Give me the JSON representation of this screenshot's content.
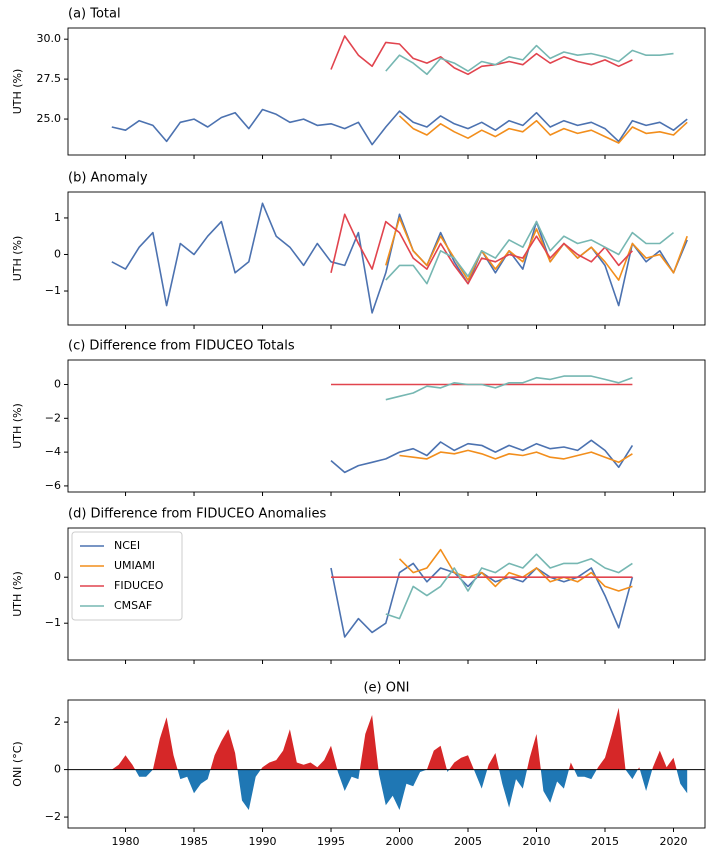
{
  "chart_data": [
    {
      "type": "line",
      "title": "(a)  Total",
      "title_loc": "left",
      "ylabel": "UTH (%)",
      "xlim": [
        1975.8,
        2022.3
      ],
      "ylim": [
        22.75,
        30.7
      ],
      "yticks": [
        {
          "value": 25,
          "label": "25.0"
        },
        27.5,
        {
          "value": 30,
          "label": "30.0"
        }
      ],
      "x": [
        1979,
        1980,
        1981,
        1982,
        1983,
        1984,
        1985,
        1986,
        1987,
        1988,
        1989,
        1990,
        1991,
        1992,
        1993,
        1994,
        1995,
        1996,
        1997,
        1998,
        1999,
        2000,
        2001,
        2002,
        2003,
        2004,
        2005,
        2006,
        2007,
        2008,
        2009,
        2010,
        2011,
        2012,
        2013,
        2014,
        2015,
        2016,
        2017,
        2018,
        2019,
        2020,
        2021
      ],
      "series": [
        {
          "name": "NCEI",
          "color": "#4c72b0",
          "values": [
            24.5,
            24.3,
            24.9,
            24.6,
            23.6,
            24.8,
            25.0,
            24.5,
            25.1,
            25.4,
            24.4,
            25.6,
            25.3,
            24.8,
            25.0,
            24.6,
            24.7,
            24.4,
            24.8,
            23.4,
            24.5,
            25.5,
            24.8,
            24.5,
            25.2,
            24.7,
            24.4,
            24.8,
            24.3,
            24.9,
            24.6,
            25.4,
            24.5,
            24.9,
            24.6,
            24.8,
            24.4,
            23.6,
            24.9,
            24.6,
            24.8,
            24.3,
            25.0
          ]
        },
        {
          "name": "UMIAMI",
          "color": "#f28e1c",
          "values": [
            null,
            null,
            null,
            null,
            null,
            null,
            null,
            null,
            null,
            null,
            null,
            null,
            null,
            null,
            null,
            null,
            null,
            null,
            null,
            null,
            null,
            25.2,
            24.4,
            24.0,
            24.7,
            24.2,
            23.8,
            24.3,
            23.9,
            24.4,
            24.2,
            24.9,
            24.0,
            24.4,
            24.1,
            24.3,
            23.9,
            23.5,
            24.5,
            24.1,
            24.2,
            24.0,
            24.8
          ]
        },
        {
          "name": "FIDUCEO",
          "color": "#e1444e",
          "values": [
            null,
            null,
            null,
            null,
            null,
            null,
            null,
            null,
            null,
            null,
            null,
            null,
            null,
            null,
            null,
            null,
            28.1,
            30.2,
            29.0,
            28.3,
            29.8,
            29.7,
            28.8,
            28.5,
            28.9,
            28.2,
            27.8,
            28.3,
            28.4,
            28.6,
            28.4,
            29.1,
            28.5,
            28.9,
            28.6,
            28.4,
            28.7,
            28.3,
            28.7,
            null,
            null,
            null,
            null
          ]
        },
        {
          "name": "CMSAF",
          "color": "#76b7b2",
          "values": [
            null,
            null,
            null,
            null,
            null,
            null,
            null,
            null,
            null,
            null,
            null,
            null,
            null,
            null,
            null,
            null,
            null,
            null,
            null,
            null,
            28.0,
            29.0,
            28.5,
            27.8,
            28.8,
            28.5,
            28.0,
            28.6,
            28.4,
            28.9,
            28.7,
            29.6,
            28.8,
            29.2,
            29.0,
            29.1,
            28.9,
            28.6,
            29.3,
            29.0,
            29.0,
            29.1,
            null
          ]
        }
      ]
    },
    {
      "type": "line",
      "title": "(b)  Anomaly",
      "title_loc": "left",
      "ylabel": "UTH (%)",
      "xlim": [
        1975.8,
        2022.3
      ],
      "ylim": [
        -1.93,
        1.71
      ],
      "yticks": [
        {
          "value": -1,
          "label": "−1"
        },
        0,
        1
      ],
      "x": [
        1979,
        1980,
        1981,
        1982,
        1983,
        1984,
        1985,
        1986,
        1987,
        1988,
        1989,
        1990,
        1991,
        1992,
        1993,
        1994,
        1995,
        1996,
        1997,
        1998,
        1999,
        2000,
        2001,
        2002,
        2003,
        2004,
        2005,
        2006,
        2007,
        2008,
        2009,
        2010,
        2011,
        2012,
        2013,
        2014,
        2015,
        2016,
        2017,
        2018,
        2019,
        2020,
        2021
      ],
      "series": [
        {
          "name": "NCEI",
          "color": "#4c72b0",
          "values": [
            -0.2,
            -0.4,
            0.2,
            0.6,
            -1.4,
            0.3,
            0.0,
            0.5,
            0.9,
            -0.5,
            -0.2,
            1.4,
            0.5,
            0.2,
            -0.3,
            0.3,
            -0.2,
            -0.3,
            0.6,
            -1.6,
            -0.5,
            1.1,
            0.1,
            -0.3,
            0.6,
            -0.2,
            -0.8,
            0.1,
            -0.5,
            0.1,
            -0.4,
            0.9,
            -0.2,
            0.3,
            -0.1,
            0.2,
            -0.3,
            -1.4,
            0.3,
            -0.2,
            0.1,
            -0.5,
            0.4
          ]
        },
        {
          "name": "UMIAMI",
          "color": "#f28e1c",
          "values": [
            null,
            null,
            null,
            null,
            null,
            null,
            null,
            null,
            null,
            null,
            null,
            null,
            null,
            null,
            null,
            null,
            null,
            null,
            null,
            null,
            -0.3,
            1.0,
            0.1,
            -0.3,
            0.5,
            -0.1,
            -0.7,
            0.1,
            -0.4,
            0.1,
            -0.2,
            0.7,
            -0.2,
            0.3,
            -0.1,
            0.2,
            -0.2,
            -0.7,
            0.3,
            -0.1,
            0.0,
            -0.5,
            0.5
          ]
        },
        {
          "name": "FIDUCEO",
          "color": "#e1444e",
          "values": [
            null,
            null,
            null,
            null,
            null,
            null,
            null,
            null,
            null,
            null,
            null,
            null,
            null,
            null,
            null,
            null,
            -0.5,
            1.1,
            0.3,
            -0.4,
            0.9,
            0.6,
            -0.1,
            -0.4,
            0.3,
            -0.3,
            -0.8,
            -0.1,
            -0.2,
            0.0,
            -0.1,
            0.5,
            -0.1,
            0.3,
            0.0,
            -0.2,
            0.2,
            -0.3,
            0.1,
            null,
            null,
            null,
            null
          ]
        },
        {
          "name": "CMSAF",
          "color": "#76b7b2",
          "values": [
            null,
            null,
            null,
            null,
            null,
            null,
            null,
            null,
            null,
            null,
            null,
            null,
            null,
            null,
            null,
            null,
            null,
            null,
            null,
            null,
            -0.7,
            -0.3,
            -0.3,
            -0.8,
            0.1,
            -0.1,
            -0.6,
            0.1,
            -0.1,
            0.4,
            0.2,
            0.9,
            0.1,
            0.5,
            0.3,
            0.4,
            0.2,
            0.0,
            0.6,
            0.3,
            0.3,
            0.6,
            null
          ]
        }
      ]
    },
    {
      "type": "line",
      "title": "(c)  Difference from FIDUCEO Totals",
      "title_loc": "left",
      "ylabel": "UTH (%)",
      "xlim": [
        1975.8,
        2022.3
      ],
      "ylim": [
        -6.36,
        1.45
      ],
      "yticks": [
        {
          "value": -6,
          "label": "−6"
        },
        {
          "value": -4,
          "label": "−4"
        },
        {
          "value": -2,
          "label": "−2"
        },
        0
      ],
      "x": [
        1995,
        1996,
        1997,
        1998,
        1999,
        2000,
        2001,
        2002,
        2003,
        2004,
        2005,
        2006,
        2007,
        2008,
        2009,
        2010,
        2011,
        2012,
        2013,
        2014,
        2015,
        2016,
        2017
      ],
      "series": [
        {
          "name": "NCEI",
          "color": "#4c72b0",
          "values": [
            -4.5,
            -5.2,
            -4.8,
            -4.6,
            -4.4,
            -4.0,
            -3.8,
            -4.2,
            -3.4,
            -3.9,
            -3.5,
            -3.6,
            -4.0,
            -3.6,
            -3.9,
            -3.5,
            -3.8,
            -3.7,
            -3.9,
            -3.3,
            -3.9,
            -4.9,
            -3.6
          ]
        },
        {
          "name": "UMIAMI",
          "color": "#f28e1c",
          "values": [
            null,
            null,
            null,
            null,
            null,
            -4.2,
            -4.3,
            -4.4,
            -4.0,
            -4.1,
            -3.9,
            -4.1,
            -4.4,
            -4.1,
            -4.2,
            -4.0,
            -4.3,
            -4.4,
            -4.2,
            -4.0,
            -4.3,
            -4.6,
            -4.1
          ]
        },
        {
          "name": "FIDUCEO",
          "color": "#e1444e",
          "values": [
            0,
            0,
            0,
            0,
            0,
            0,
            0,
            0,
            0,
            0,
            0,
            0,
            0,
            0,
            0,
            0,
            0,
            0,
            0,
            0,
            0,
            0,
            0
          ]
        },
        {
          "name": "CMSAF",
          "color": "#76b7b2",
          "values": [
            null,
            null,
            null,
            null,
            -0.9,
            -0.7,
            -0.5,
            -0.1,
            -0.2,
            0.1,
            0.0,
            0.0,
            -0.2,
            0.1,
            0.1,
            0.4,
            0.3,
            0.5,
            0.5,
            0.5,
            0.3,
            0.1,
            0.4
          ]
        }
      ]
    },
    {
      "type": "line",
      "title": "(d)  Difference from FIDUCEO Anomalies",
      "title_loc": "left",
      "ylabel": "UTH (%)",
      "xlim": [
        1975.8,
        2022.3
      ],
      "ylim": [
        -1.8,
        1.07
      ],
      "legend": "upper left",
      "yticks": [
        {
          "value": -1,
          "label": "−1"
        },
        0
      ],
      "x": [
        1995,
        1996,
        1997,
        1998,
        1999,
        2000,
        2001,
        2002,
        2003,
        2004,
        2005,
        2006,
        2007,
        2008,
        2009,
        2010,
        2011,
        2012,
        2013,
        2014,
        2015,
        2016,
        2017
      ],
      "series": [
        {
          "name": "NCEI",
          "color": "#4c72b0",
          "values": [
            0.2,
            -1.3,
            -0.9,
            -1.2,
            -1.0,
            0.1,
            0.3,
            -0.1,
            0.2,
            0.1,
            -0.2,
            0.1,
            -0.1,
            0.0,
            -0.1,
            0.2,
            0.0,
            -0.1,
            0.0,
            0.2,
            -0.4,
            -1.1,
            0.0
          ]
        },
        {
          "name": "UMIAMI",
          "color": "#f28e1c",
          "values": [
            null,
            null,
            null,
            null,
            null,
            0.4,
            0.1,
            0.2,
            0.6,
            0.1,
            0.0,
            0.1,
            -0.2,
            0.1,
            0.0,
            0.2,
            -0.1,
            0.0,
            -0.1,
            0.1,
            -0.2,
            -0.3,
            -0.2
          ]
        },
        {
          "name": "FIDUCEO",
          "color": "#e1444e",
          "values": [
            0,
            0,
            0,
            0,
            0,
            0,
            0,
            0,
            0,
            0,
            0,
            0,
            0,
            0,
            0,
            0,
            0,
            0,
            0,
            0,
            0,
            0,
            0
          ]
        },
        {
          "name": "CMSAF",
          "color": "#76b7b2",
          "values": [
            null,
            null,
            null,
            null,
            -0.8,
            -0.9,
            -0.2,
            -0.4,
            -0.2,
            0.2,
            -0.3,
            0.2,
            0.1,
            0.3,
            0.2,
            0.5,
            0.2,
            0.3,
            0.3,
            0.4,
            0.2,
            0.1,
            0.3
          ]
        }
      ]
    },
    {
      "type": "area",
      "title": "(e) ONI",
      "title_loc": "center",
      "ylabel": "ONI (°C)",
      "xlim": [
        1975.8,
        2022.3
      ],
      "ylim": [
        -2.46,
        2.93
      ],
      "yticks": [
        {
          "value": -2,
          "label": "−2"
        },
        0,
        2
      ],
      "xticks": [
        1980,
        1985,
        1990,
        1995,
        2000,
        2005,
        2010,
        2015,
        2020
      ],
      "positive_color": "#d62728",
      "negative_color": "#1f77b4",
      "x": [
        1979,
        1979.5,
        1980,
        1980.5,
        1981,
        1981.5,
        1982,
        1982.5,
        1983,
        1983.5,
        1984,
        1984.5,
        1985,
        1985.5,
        1986,
        1986.5,
        1987,
        1987.5,
        1988,
        1988.5,
        1989,
        1989.5,
        1990,
        1990.5,
        1991,
        1991.5,
        1992,
        1992.5,
        1993,
        1993.5,
        1994,
        1994.5,
        1995,
        1995.5,
        1996,
        1996.5,
        1997,
        1997.5,
        1998,
        1998.5,
        1999,
        1999.5,
        2000,
        2000.5,
        2001,
        2001.5,
        2002,
        2002.5,
        2003,
        2003.5,
        2004,
        2004.5,
        2005,
        2005.5,
        2006,
        2006.5,
        2007,
        2007.5,
        2008,
        2008.5,
        2009,
        2009.5,
        2010,
        2010.5,
        2011,
        2011.5,
        2012,
        2012.5,
        2013,
        2013.5,
        2014,
        2014.5,
        2015,
        2015.5,
        2016,
        2016.5,
        2017,
        2017.5,
        2018,
        2018.5,
        2019,
        2019.5,
        2020,
        2020.5,
        2021
      ],
      "values": [
        0.0,
        0.2,
        0.6,
        0.2,
        -0.3,
        -0.3,
        0.0,
        1.3,
        2.2,
        0.6,
        -0.4,
        -0.3,
        -1.0,
        -0.6,
        -0.4,
        0.6,
        1.2,
        1.7,
        0.7,
        -1.3,
        -1.7,
        -0.3,
        0.1,
        0.3,
        0.4,
        0.8,
        1.7,
        0.3,
        0.2,
        0.3,
        0.1,
        0.4,
        1.0,
        -0.1,
        -0.9,
        -0.3,
        -0.4,
        1.5,
        2.3,
        -0.2,
        -1.5,
        -1.1,
        -1.7,
        -0.6,
        -0.7,
        -0.1,
        0.0,
        0.8,
        1.0,
        -0.1,
        0.3,
        0.5,
        0.6,
        -0.1,
        -0.8,
        0.2,
        0.7,
        -0.6,
        -1.6,
        -0.4,
        -0.8,
        0.5,
        1.5,
        -0.9,
        -1.4,
        -0.5,
        -0.8,
        0.3,
        -0.3,
        -0.3,
        -0.4,
        0.1,
        0.5,
        1.5,
        2.6,
        0.0,
        -0.4,
        0.1,
        -0.9,
        0.1,
        0.8,
        0.1,
        0.5,
        -0.6,
        -1.0
      ]
    }
  ]
}
